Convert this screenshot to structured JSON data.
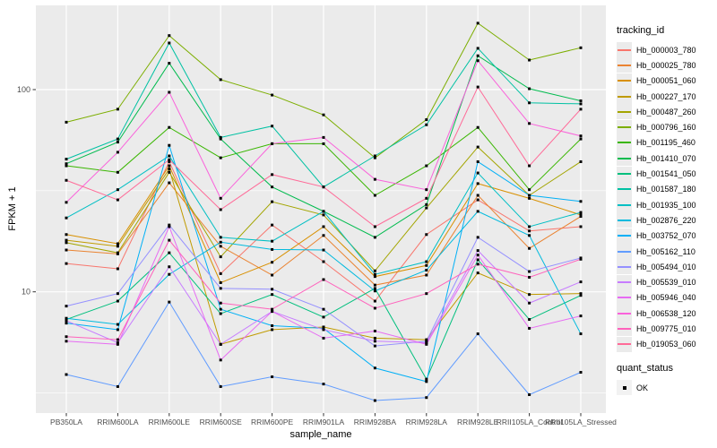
{
  "chart_data": {
    "type": "line",
    "title": "",
    "xlabel": "sample_name",
    "ylabel": "FPKM + 1",
    "y_scale": "log10",
    "y_ticks": [
      10,
      100
    ],
    "y_minor_ticks": [
      3.162,
      31.62
    ],
    "ylim": [
      2.4,
      260
    ],
    "grid": true,
    "legend_position": "right",
    "categories": [
      "PB350LA",
      "RRIM600LA",
      "RRIM600LE",
      "RRIM600SE",
      "RRIM600PE",
      "RRIM901LA",
      "RRIM928BA",
      "RRIM928LA",
      "RRIM928LE",
      "RRII105LA_Control",
      "RRII105LA_Stressed"
    ],
    "series": [
      {
        "name": "Hb_000003_780",
        "color": "#F8766D",
        "values": [
          13.8,
          13.0,
          44,
          12.3,
          21.4,
          14.1,
          9.0,
          19.2,
          28.5,
          20.0,
          21.0
        ]
      },
      {
        "name": "Hb_000025_780",
        "color": "#EA8331",
        "values": [
          16.1,
          15.4,
          34.6,
          16.8,
          12.1,
          19.0,
          10.8,
          12.1,
          30.0,
          16.4,
          23.6
        ]
      },
      {
        "name": "Hb_000051_060",
        "color": "#D89000",
        "values": [
          19.2,
          17.3,
          42,
          11.1,
          14.0,
          21.0,
          11.9,
          13.5,
          34.3,
          29.0,
          24.0
        ]
      },
      {
        "name": "Hb_000227_170",
        "color": "#C09B00",
        "values": [
          18.0,
          16.8,
          40.5,
          5.5,
          6.5,
          6.7,
          5.9,
          5.8,
          12.4,
          9.7,
          9.8
        ]
      },
      {
        "name": "Hb_000487_260",
        "color": "#A3A500",
        "values": [
          17.5,
          15.6,
          39,
          14.9,
          27.9,
          24.0,
          12.7,
          26.0,
          52.0,
          30.0,
          44.0
        ]
      },
      {
        "name": "Hb_000796_160",
        "color": "#7CAE00",
        "values": [
          69,
          80,
          185,
          112,
          94,
          75,
          46,
          71,
          213,
          140,
          161
        ]
      },
      {
        "name": "Hb_001195_460",
        "color": "#39B600",
        "values": [
          42,
          39,
          65,
          46,
          54,
          54,
          30,
          42,
          65,
          32,
          57
        ]
      },
      {
        "name": "Hb_001410_070",
        "color": "#00BB4E",
        "values": [
          43,
          55,
          135,
          57,
          33,
          25,
          18.6,
          27,
          147,
          101,
          88
        ]
      },
      {
        "name": "Hb_001541_050",
        "color": "#00BF7D",
        "values": [
          7.3,
          9.0,
          15.6,
          7.8,
          9.7,
          7.5,
          10.4,
          3.7,
          14.4,
          7.3,
          9.6
        ]
      },
      {
        "name": "Hb_001587_180",
        "color": "#00C1A3",
        "values": [
          45.3,
          57,
          170,
          58,
          66,
          33,
          47,
          67,
          160,
          86,
          85
        ]
      },
      {
        "name": "Hb_001935_100",
        "color": "#00BFC4",
        "values": [
          23.2,
          32,
          47,
          18.6,
          17.8,
          25,
          12.2,
          14.1,
          38.7,
          21,
          24.7
        ]
      },
      {
        "name": "Hb_002876_220",
        "color": "#00BADE",
        "values": [
          7.4,
          6.9,
          12.2,
          17.6,
          16.2,
          16.1,
          10.1,
          12.8,
          25,
          19,
          6.2
        ]
      },
      {
        "name": "Hb_003752_070",
        "color": "#00B0F6",
        "values": [
          7.0,
          6.5,
          53,
          8.2,
          6.8,
          6.6,
          4.2,
          3.6,
          44,
          30,
          28
        ]
      },
      {
        "name": "Hb_005162_110",
        "color": "#619CFF",
        "values": [
          3.9,
          3.4,
          8.9,
          3.4,
          3.8,
          3.5,
          2.9,
          3.0,
          6.2,
          3.1,
          4.0
        ]
      },
      {
        "name": "Hb_005494_010",
        "color": "#9590FF",
        "values": [
          8.5,
          9.8,
          21.4,
          10.4,
          10.3,
          8.2,
          5.4,
          5.7,
          18.6,
          12.6,
          14.7
        ]
      },
      {
        "name": "Hb_005539_010",
        "color": "#C77CFF",
        "values": [
          7.2,
          5.6,
          13.3,
          5.5,
          8.0,
          6.5,
          5.7,
          5.6,
          16.0,
          8.8,
          11.2
        ]
      },
      {
        "name": "Hb_005946_040",
        "color": "#E76BF3",
        "values": [
          5.7,
          5.5,
          21.0,
          4.6,
          8.0,
          5.9,
          6.4,
          5.5,
          15.2,
          6.6,
          7.6
        ]
      },
      {
        "name": "Hb_006538_120",
        "color": "#FA62DB",
        "values": [
          27.7,
          49,
          97,
          29,
          54,
          58,
          36,
          32,
          139,
          68,
          59
        ]
      },
      {
        "name": "Hb_009775_010",
        "color": "#FF62BC",
        "values": [
          6.0,
          5.8,
          18.0,
          8.8,
          8.2,
          11.5,
          8.3,
          9.8,
          13.7,
          11.8,
          14.5
        ]
      },
      {
        "name": "Hb_019053_060",
        "color": "#FF6A98",
        "values": [
          35.6,
          28.5,
          45,
          25.5,
          38,
          33,
          21,
          29,
          103,
          42,
          80
        ]
      }
    ],
    "legend": {
      "color_title": "tracking_id",
      "shape_title": "quant_status",
      "shape_entries": [
        {
          "label": "OK",
          "marker": "filled-black-square"
        }
      ]
    },
    "point_marker": "filled-black-square"
  },
  "colors": {
    "panel_bg": "#EBEBEB",
    "grid": "#FFFFFF",
    "axis_text": "#4D4D4D",
    "tick_mark": "#333333",
    "point": "#000000",
    "legend_key_bg": "#EBEBEB",
    "page_bg": "#FFFFFF"
  }
}
